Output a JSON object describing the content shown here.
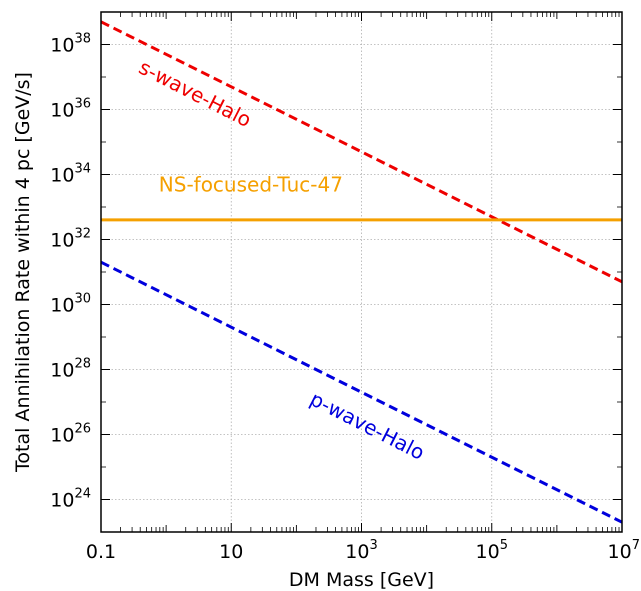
{
  "chart_data": {
    "type": "line",
    "xlabel": "DM Mass [GeV]",
    "ylabel": "Total Annihilation Rate within 4 pc [GeV/s]",
    "xscale": "log",
    "yscale": "log",
    "xlim": [
      0.1,
      10000000
    ],
    "ylim": [
      1e+23,
      1e+39
    ],
    "grid": true,
    "x_ticks": [
      {
        "value": 0.1,
        "base": "0.1",
        "exp": ""
      },
      {
        "value": 10,
        "base": "10",
        "exp": ""
      },
      {
        "value": 1000,
        "base": "10",
        "exp": "3"
      },
      {
        "value": 100000,
        "base": "10",
        "exp": "5"
      },
      {
        "value": 10000000,
        "base": "10",
        "exp": "7"
      }
    ],
    "y_ticks": [
      {
        "value": 1e+24,
        "base": "10",
        "exp": "24"
      },
      {
        "value": 1e+26,
        "base": "10",
        "exp": "26"
      },
      {
        "value": 1e+28,
        "base": "10",
        "exp": "28"
      },
      {
        "value": 1e+30,
        "base": "10",
        "exp": "30"
      },
      {
        "value": 1e+32,
        "base": "10",
        "exp": "32"
      },
      {
        "value": 1e+34,
        "base": "10",
        "exp": "34"
      },
      {
        "value": 1e+36,
        "base": "10",
        "exp": "36"
      },
      {
        "value": 1e+38,
        "base": "10",
        "exp": "38"
      }
    ],
    "series": [
      {
        "name": "s-wave-Halo",
        "color": "#ee0000",
        "style": "dashed",
        "x": [
          0.1,
          10000000
        ],
        "y": [
          5e+38,
          5e+30
        ],
        "label_at": [
          2.5,
          2e+36
        ],
        "label_rotate": 27
      },
      {
        "name": "NS-focused-Tuc-47",
        "color": "#f5a000",
        "style": "solid",
        "x": [
          0.1,
          10000000
        ],
        "y": [
          4e+32,
          4e+32
        ],
        "label_at": [
          20,
          3e+33
        ],
        "label_rotate": 0
      },
      {
        "name": "p-wave-Halo",
        "color": "#0000dd",
        "style": "dashed",
        "x": [
          0.1,
          10000000
        ],
        "y": [
          2e+31,
          2e+23
        ],
        "label_at": [
          1100,
          1.2e+26
        ],
        "label_rotate": 27
      }
    ]
  }
}
